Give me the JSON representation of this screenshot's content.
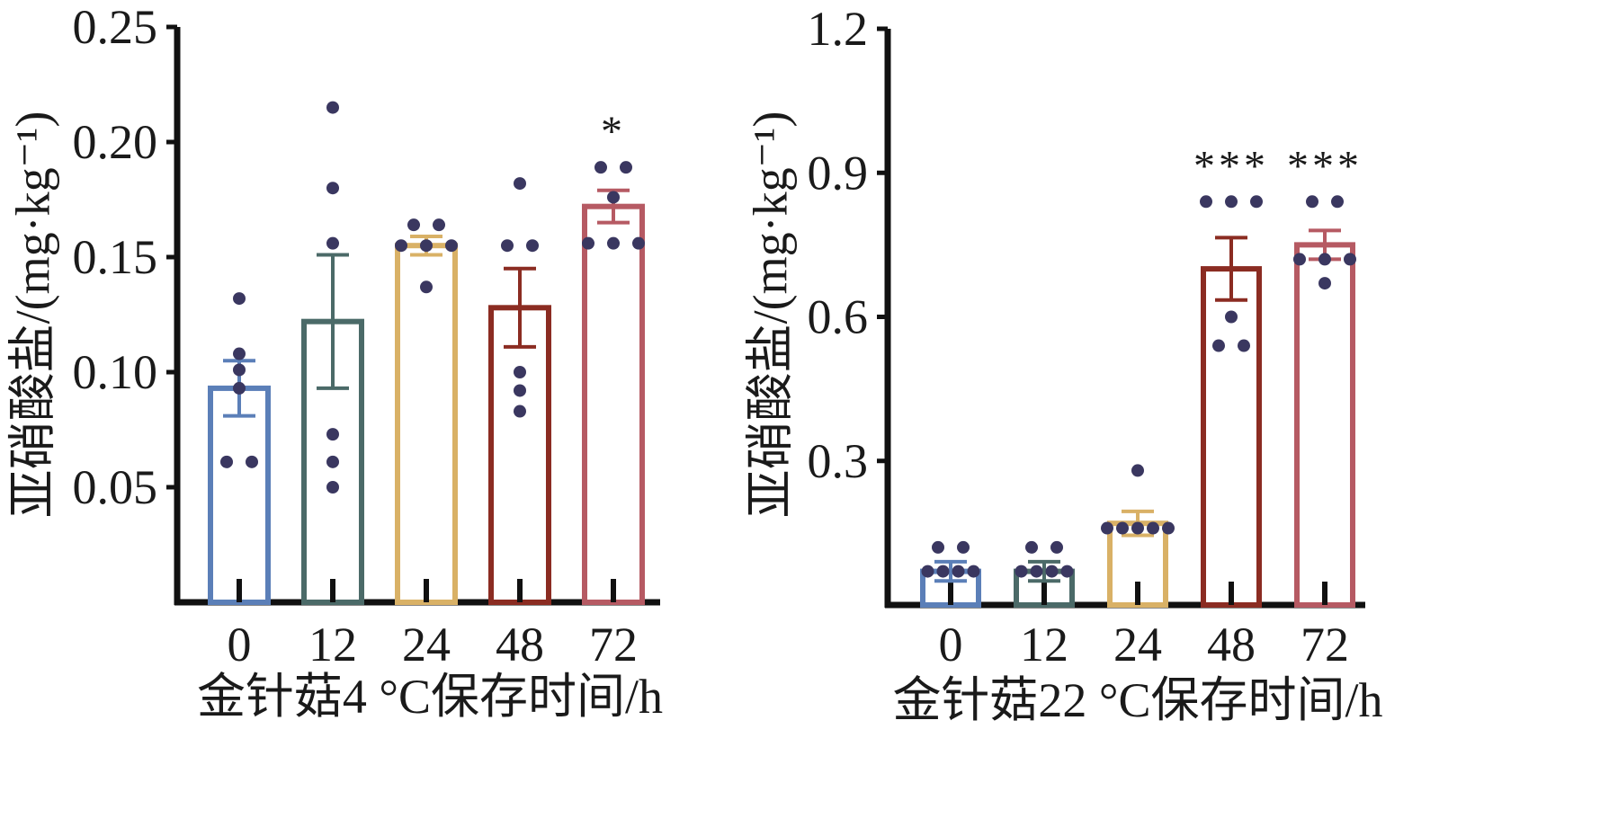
{
  "chart_data": [
    {
      "type": "bar",
      "panel": "left",
      "categories": [
        "0",
        "12",
        "24",
        "48",
        "72"
      ],
      "values": [
        0.093,
        0.122,
        0.155,
        0.128,
        0.172
      ],
      "errors": [
        0.012,
        0.029,
        0.004,
        0.017,
        0.007
      ],
      "points": [
        [
          0.132,
          0.108,
          0.101,
          0.093,
          0.061,
          0.061
        ],
        [
          0.215,
          0.18,
          0.156,
          0.073,
          0.061,
          0.05
        ],
        [
          0.164,
          0.164,
          0.155,
          0.155,
          0.155,
          0.137
        ],
        [
          0.182,
          0.155,
          0.155,
          0.1,
          0.092,
          0.083
        ],
        [
          0.189,
          0.189,
          0.176,
          0.156,
          0.156,
          0.156
        ]
      ],
      "colors": [
        "#5b7fb8",
        "#4b6a68",
        "#d9b166",
        "#8b2c22",
        "#b65a63"
      ],
      "point_color": "#3a3760",
      "significance": [
        "",
        "",
        "",
        "",
        "*"
      ],
      "ylabel": "亚硝酸盐/(mg·kg⁻¹)",
      "xlabel": "金针菇4 °C保存时间/h",
      "yticks": [
        "0.05",
        "0.10",
        "0.15",
        "0.20",
        "0.25"
      ],
      "ylim": [
        0,
        0.25
      ]
    },
    {
      "type": "bar",
      "panel": "right",
      "categories": [
        "0",
        "12",
        "24",
        "48",
        "72"
      ],
      "values": [
        0.07,
        0.07,
        0.17,
        0.7,
        0.75
      ],
      "errors": [
        0.02,
        0.02,
        0.025,
        0.065,
        0.03
      ],
      "points": [
        [
          0.12,
          0.12,
          0.07,
          0.07,
          0.07,
          0.07
        ],
        [
          0.12,
          0.12,
          0.07,
          0.07,
          0.07,
          0.07
        ],
        [
          0.28,
          0.16,
          0.16,
          0.16,
          0.16,
          0.16
        ],
        [
          0.84,
          0.84,
          0.84,
          0.6,
          0.54,
          0.54
        ],
        [
          0.84,
          0.84,
          0.72,
          0.72,
          0.72,
          0.67
        ]
      ],
      "colors": [
        "#5b7fb8",
        "#4b6a68",
        "#d9b166",
        "#8b2c22",
        "#b65a63"
      ],
      "point_color": "#3a3760",
      "significance": [
        "",
        "",
        "",
        "***",
        "***"
      ],
      "ylabel": "亚硝酸盐/(mg·kg⁻¹)",
      "xlabel": "金针菇22 °C保存时间/h",
      "yticks": [
        "0.3",
        "0.6",
        "0.9",
        "1.2"
      ],
      "ylim": [
        0,
        1.2
      ]
    }
  ]
}
